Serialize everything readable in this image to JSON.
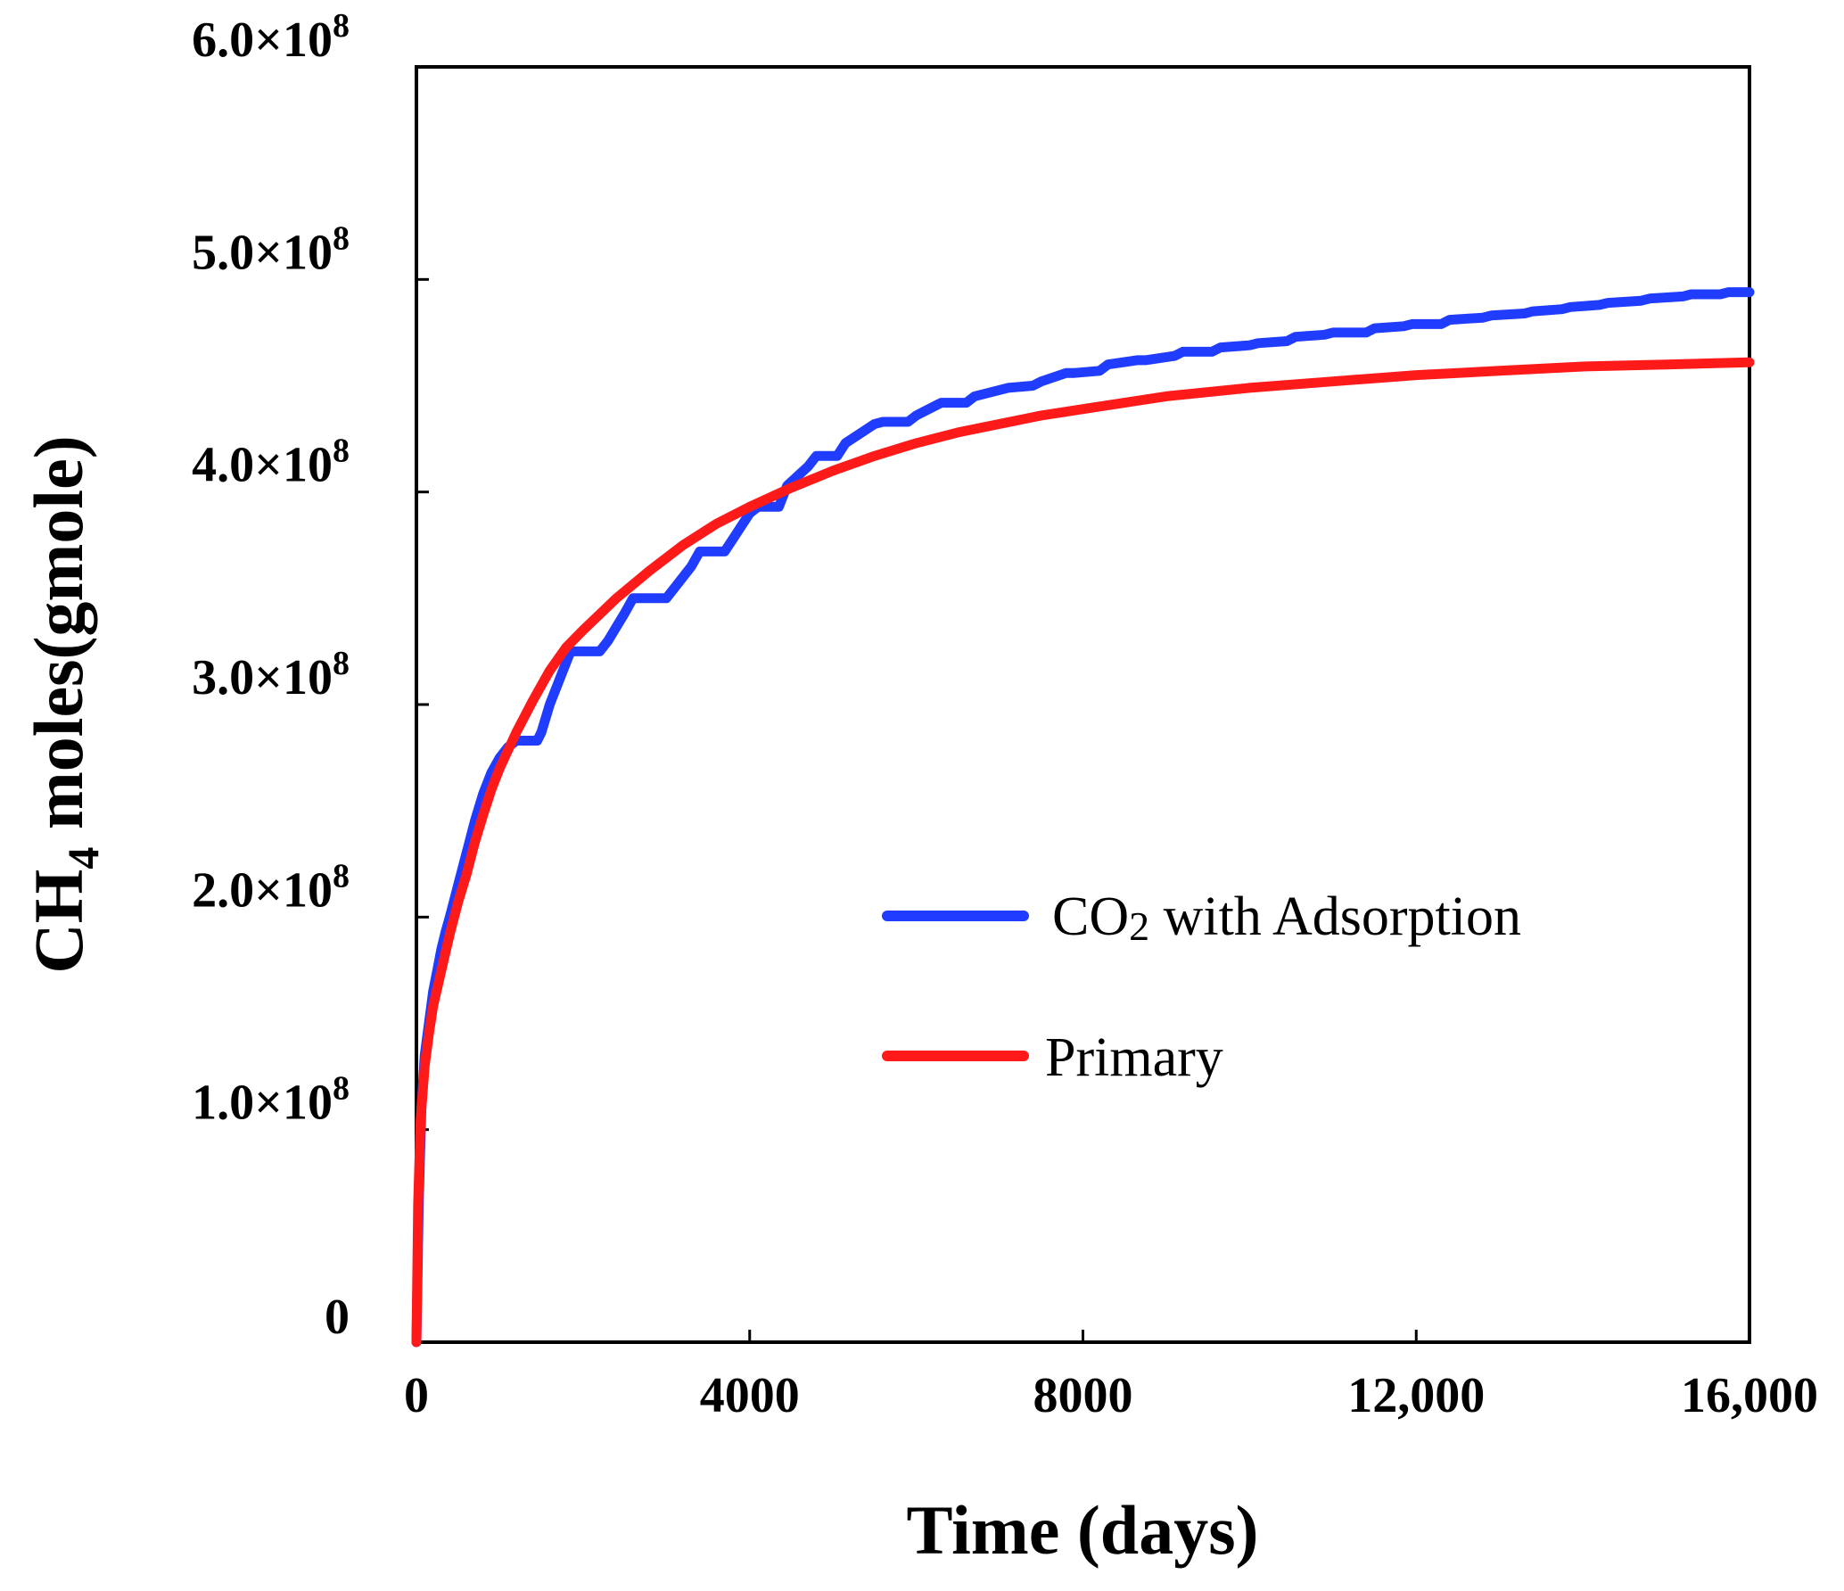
{
  "chart_data": {
    "type": "line",
    "xlabel": "Time (days)",
    "ylabel_main": "CH",
    "ylabel_sub": "4",
    "ylabel_rest": " moles(gmole)",
    "xlim": [
      0,
      16000
    ],
    "ylim": [
      0,
      600000000
    ],
    "x_ticks": [
      {
        "value": 0,
        "label": "0"
      },
      {
        "value": 4000,
        "label": "4000"
      },
      {
        "value": 8000,
        "label": "8000"
      },
      {
        "value": 12000,
        "label": "12,000"
      },
      {
        "value": 16000,
        "label": "16,000"
      }
    ],
    "y_ticks": [
      {
        "value": 0,
        "base": "0",
        "exp": ""
      },
      {
        "value": 100000000,
        "base": "1.0×10",
        "exp": "8"
      },
      {
        "value": 200000000,
        "base": "2.0×10",
        "exp": "8"
      },
      {
        "value": 300000000,
        "base": "3.0×10",
        "exp": "8"
      },
      {
        "value": 400000000,
        "base": "4.0×10",
        "exp": "8"
      },
      {
        "value": 500000000,
        "base": "5.0×10",
        "exp": "8"
      },
      {
        "value": 600000000,
        "base": "6.0×10",
        "exp": "8"
      }
    ],
    "series": [
      {
        "name": "CO2 with Adsorption",
        "legend_main": "CO",
        "legend_sub": "2",
        "legend_rest": " with Adsorption",
        "color": "#1f3cff",
        "x": [
          0,
          30,
          60,
          100,
          150,
          200,
          250,
          300,
          350,
          400,
          500,
          600,
          700,
          800,
          900,
          1000,
          1100,
          1200,
          1300,
          1450,
          1500,
          1600,
          1750,
          1850,
          2200,
          2300,
          2500,
          2600,
          3000,
          3100,
          3300,
          3400,
          3700,
          3800,
          4000,
          4100,
          4350,
          4450,
          4700,
          4800,
          5050,
          5150,
          5500,
          5600,
          5900,
          6000,
          6200,
          6300,
          6600,
          6700,
          7000,
          7100,
          7400,
          7500,
          7800,
          7900,
          8200,
          8300,
          8650,
          8750,
          9100,
          9200,
          9550,
          9650,
          10000,
          10100,
          10450,
          10550,
          10900,
          11000,
          11400,
          11500,
          11850,
          11950,
          12300,
          12400,
          12800,
          12900,
          13300,
          13400,
          13750,
          13850,
          14200,
          14300,
          14700,
          14800,
          15200,
          15300,
          15650,
          15750,
          16000
        ],
        "y": [
          0,
          68000000,
          110000000,
          135000000,
          150000000,
          165000000,
          175000000,
          185000000,
          193000000,
          200000000,
          215000000,
          230000000,
          245000000,
          258000000,
          268000000,
          275000000,
          280000000,
          283000000,
          283000000,
          283000000,
          287000000,
          300000000,
          315000000,
          325000000,
          325000000,
          330000000,
          343000000,
          350000000,
          350000000,
          355000000,
          365000000,
          372000000,
          372000000,
          378000000,
          390000000,
          393000000,
          393000000,
          403000000,
          412000000,
          417000000,
          417000000,
          423000000,
          432000000,
          433000000,
          433000000,
          436000000,
          440000000,
          442000000,
          442000000,
          445000000,
          448000000,
          449000000,
          450000000,
          452000000,
          456000000,
          456000000,
          457000000,
          460000000,
          462000000,
          462000000,
          464000000,
          466000000,
          466000000,
          468000000,
          469000000,
          470000000,
          471000000,
          473000000,
          474000000,
          475000000,
          475000000,
          477000000,
          478000000,
          479000000,
          479000000,
          481000000,
          482000000,
          483000000,
          484000000,
          485000000,
          486000000,
          487000000,
          488000000,
          489000000,
          490000000,
          491000000,
          492000000,
          493000000,
          493000000,
          494000000,
          494000000
        ]
      },
      {
        "name": "Primary",
        "legend_main": "Primary",
        "legend_sub": "",
        "legend_rest": "",
        "color": "#ff1a1a",
        "x": [
          0,
          20,
          50,
          100,
          150,
          200,
          300,
          400,
          500,
          600,
          700,
          800,
          900,
          1000,
          1200,
          1400,
          1600,
          1800,
          2000,
          2400,
          2800,
          3200,
          3600,
          4000,
          4500,
          5000,
          5500,
          6000,
          6500,
          7000,
          7500,
          8000,
          9000,
          10000,
          11000,
          12000,
          13000,
          14000,
          15000,
          16000
        ],
        "y": [
          0,
          65000000,
          105000000,
          130000000,
          145000000,
          158000000,
          175000000,
          192000000,
          207000000,
          220000000,
          235000000,
          248000000,
          260000000,
          270000000,
          287000000,
          302000000,
          316000000,
          327000000,
          335000000,
          350000000,
          363000000,
          375000000,
          385000000,
          393000000,
          402000000,
          410000000,
          417000000,
          423000000,
          428000000,
          432000000,
          436000000,
          439000000,
          445000000,
          449000000,
          452000000,
          455000000,
          457000000,
          459000000,
          460000000,
          461000000
        ]
      }
    ],
    "legend_position": "center-right"
  }
}
